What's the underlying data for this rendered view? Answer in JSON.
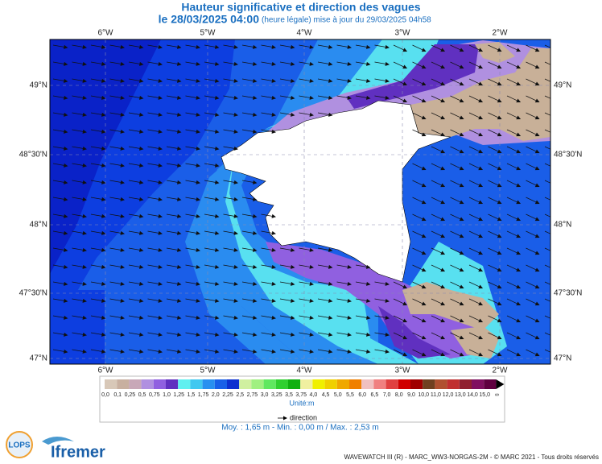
{
  "header": {
    "title": "Hauteur significative et direction des vagues",
    "date": "le 28/03/2025 04:00",
    "subtitle": "(heure légale) mise à jour du 29/03/2025 04h58"
  },
  "map": {
    "longitudes": [
      "6°W",
      "5°W",
      "4°W",
      "3°W",
      "2°W"
    ],
    "latitudes": [
      "49°N",
      "48°30'N",
      "48°N",
      "47°30'N",
      "47°N"
    ]
  },
  "legend": {
    "labels": [
      "0,0",
      "0,1",
      "0,25",
      "0,5",
      "0,75",
      "1,0",
      "1,25",
      "1,5",
      "1,75",
      "2,0",
      "2,25",
      "2,5",
      "2,75",
      "3,0",
      "3,25",
      "3,5",
      "3,75",
      "4,0",
      "4,5",
      "5,0",
      "5,5",
      "6,0",
      "6,5",
      "7,0",
      "8,0",
      "9,0",
      "10,0",
      "11,0",
      "12,0",
      "13,0",
      "14,0",
      "15,0",
      "∞"
    ],
    "colors": [
      "#d8c8b8",
      "#c8b0a0",
      "#c8a8b8",
      "#b090e0",
      "#9060e0",
      "#6030c0",
      "#60f0f0",
      "#40c8f0",
      "#2890f0",
      "#1860e8",
      "#0c30d0",
      "#d0f0a0",
      "#a0f080",
      "#60e860",
      "#30d030",
      "#10b010",
      "#f0f0a0",
      "#f0f000",
      "#f0d000",
      "#f0a800",
      "#f08000",
      "#f0c0c0",
      "#f08080",
      "#e04040",
      "#d00000",
      "#a00000",
      "#704020",
      "#b05030",
      "#c03030",
      "#902030",
      "#801060",
      "#600040"
    ],
    "unit": "Unité:m",
    "direction": "direction",
    "stats": "Moy. : 1,65 m   -   Min. : 0,00 m / Max. : 2,53 m"
  },
  "footer": {
    "logo1": "LOPS",
    "logo2": "Ifremer",
    "credits": "WAVEWATCH III (R) - MARC_WW3-NORGAS-2M - © MARC 2021 - Tous droits réservés"
  }
}
